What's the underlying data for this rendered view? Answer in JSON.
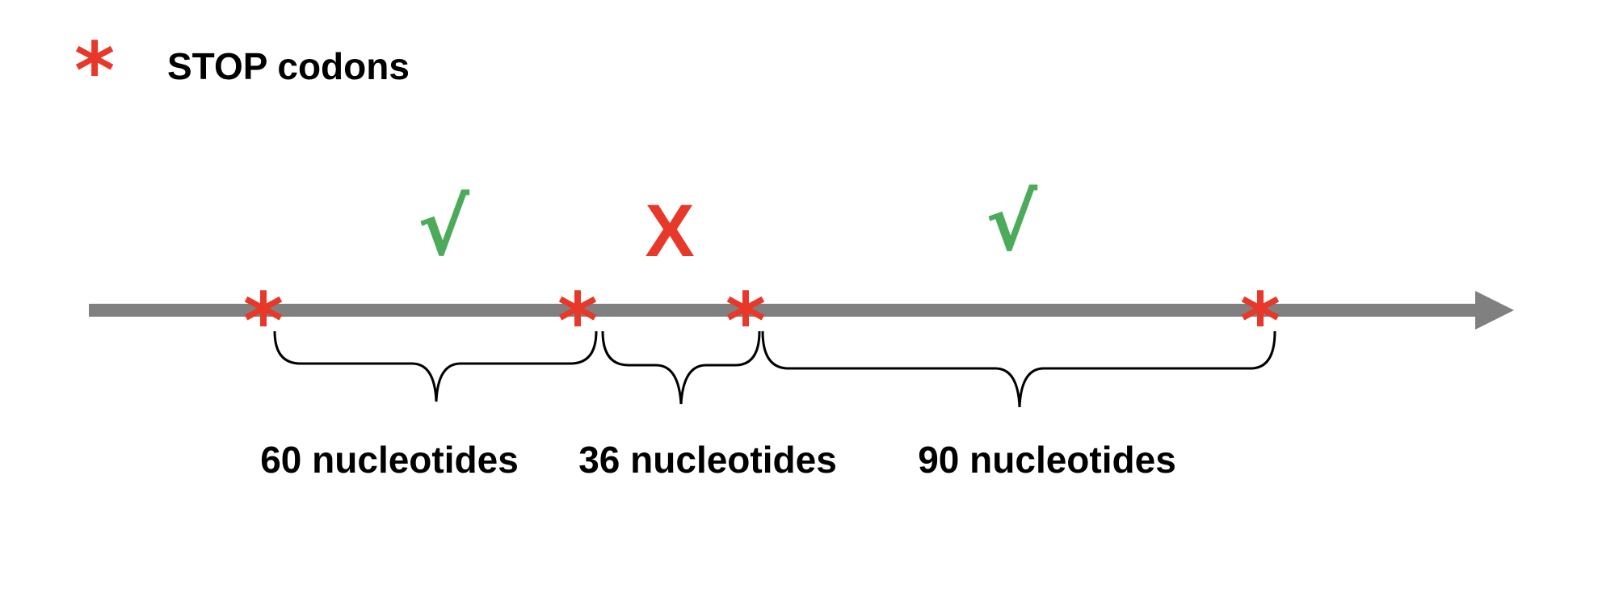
{
  "legend": {
    "symbol": "*",
    "label": "STOP codons",
    "symbol_color": "#e8382a"
  },
  "sequence": {
    "arrow_color": "#808080",
    "stop_symbol": "*",
    "stop_count": 4
  },
  "marks": {
    "check_symbol": "√",
    "x_symbol": "X",
    "check_color": "#4cab5a",
    "x_color": "#e8382a"
  },
  "segments": [
    {
      "label": "60 nucleotides",
      "valid": true
    },
    {
      "label": "36 nucleotides",
      "valid": false
    },
    {
      "label": "90 nucleotides",
      "valid": true
    }
  ]
}
